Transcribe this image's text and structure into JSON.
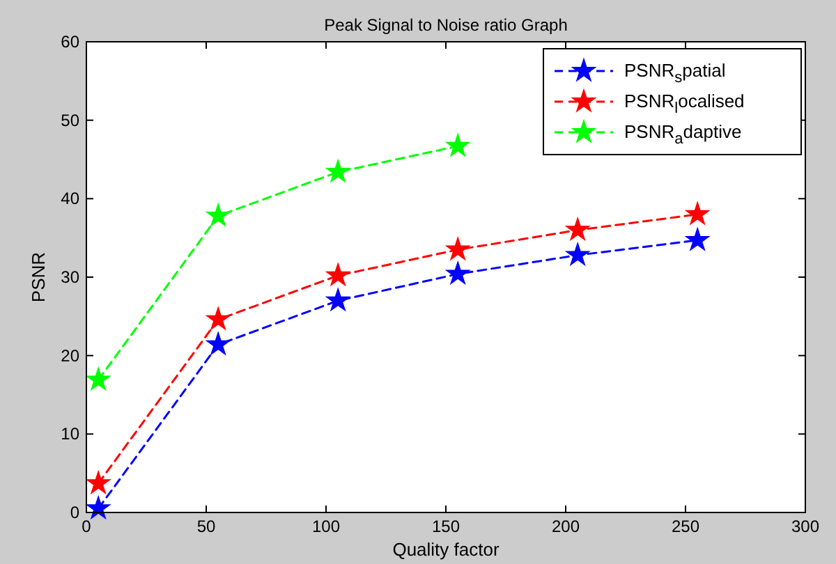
{
  "chart_data": {
    "type": "line",
    "title": "Peak Signal to Noise ratio Graph",
    "xlabel": "Quality factor",
    "ylabel": "PSNR",
    "x": [
      5,
      55,
      105,
      155,
      205,
      255
    ],
    "series": [
      {
        "name": "PSNR$_{s}$patial",
        "color": "#0000ff",
        "values": [
          0.5,
          21.4,
          27,
          30.4,
          32.8,
          34.7
        ]
      },
      {
        "name": "PSNR$_{l}$ocalised",
        "color": "#ff0000",
        "values": [
          3.7,
          24.6,
          30.2,
          33.5,
          36,
          38
        ]
      },
      {
        "name": "PSNR$_{a}$daptive",
        "color": "#00ff00",
        "values": [
          16.9,
          37.8,
          43.4,
          46.7,
          null,
          null
        ]
      }
    ],
    "xlim": [
      0,
      300
    ],
    "xticks": [
      0,
      50,
      100,
      150,
      200,
      250,
      300
    ],
    "ylim": [
      0,
      60
    ],
    "yticks": [
      0,
      10,
      20,
      30,
      40,
      50,
      60
    ],
    "grid": false,
    "legend": "top right",
    "marker": "star",
    "line_style": "dashed"
  }
}
